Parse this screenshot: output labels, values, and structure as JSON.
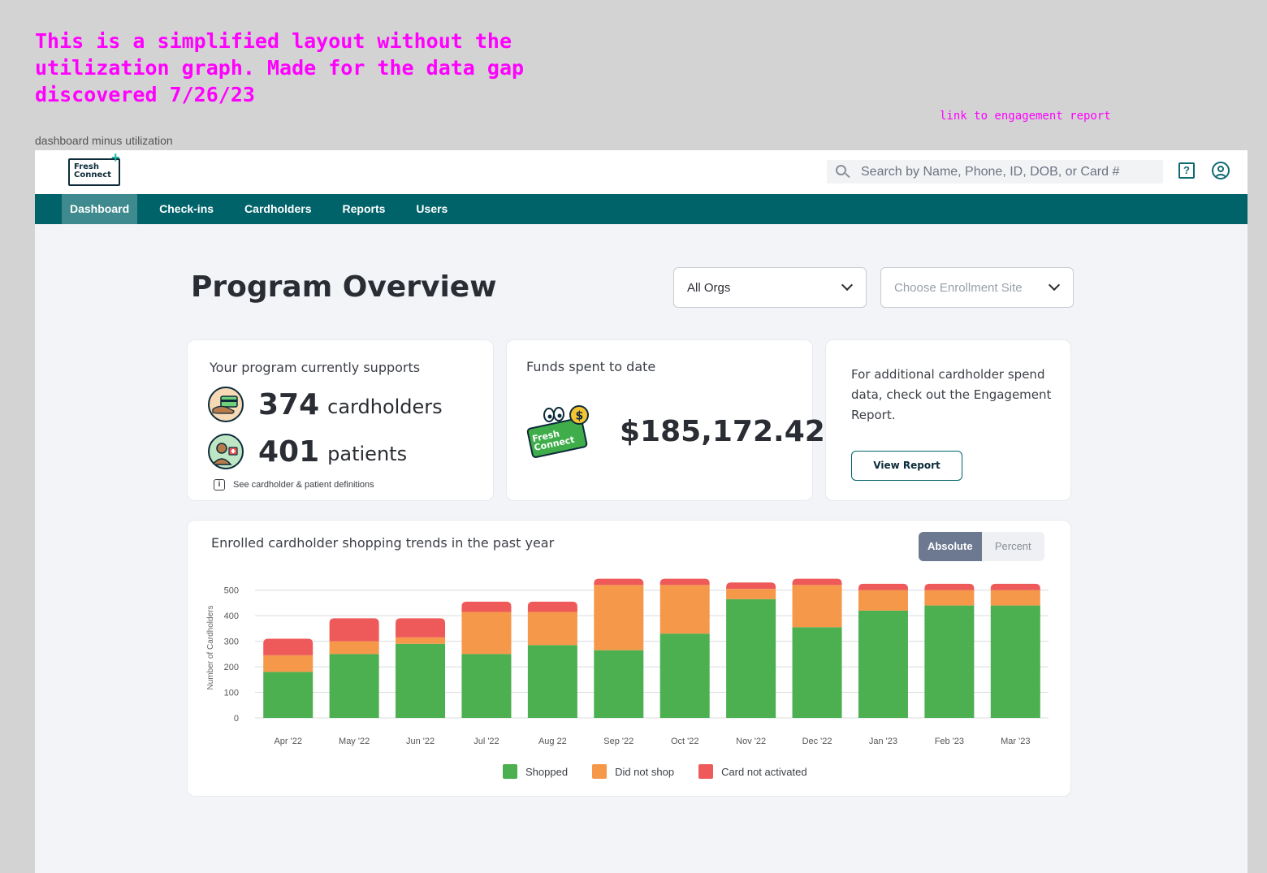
{
  "annotations": {
    "note": "This is a simplified layout without the utilization graph. Made for the data gap discovered 7/26/23",
    "link_note": "link to engagement report",
    "frame_label": "dashboard minus utilization"
  },
  "header": {
    "logo_line1": "Fresh",
    "logo_line2": "Connect",
    "search_placeholder": "Search by Name, Phone, ID, DOB, or Card #",
    "help_icon": "?"
  },
  "nav": {
    "items": [
      {
        "label": "Dashboard",
        "active": true
      },
      {
        "label": "Check-ins"
      },
      {
        "label": "Cardholders"
      },
      {
        "label": "Reports"
      },
      {
        "label": "Users"
      }
    ]
  },
  "page": {
    "title": "Program Overview",
    "org_select": "All Orgs",
    "site_select_placeholder": "Choose Enrollment Site"
  },
  "support_card": {
    "heading": "Your program currently supports",
    "cardholders_count": "374",
    "cardholders_label": "cardholders",
    "patients_count": "401",
    "patients_label": "patients",
    "definitions_link": "See cardholder & patient definitions"
  },
  "funds_card": {
    "heading": "Funds spent to date",
    "badge_text": "Fresh Connect",
    "value": "$185,172.42"
  },
  "report_card": {
    "text": "For additional cardholder spend data, check out the Engagement Report.",
    "button": "View Report"
  },
  "colors": {
    "shopped": "#4caf50",
    "did_not_shop": "#f5984a",
    "card_not_activated": "#ee5a5a",
    "brand_teal": "#00636a"
  },
  "chart_card": {
    "title": "Enrolled cardholder shopping trends in the past year",
    "toggle": [
      "Absolute",
      "Percent"
    ]
  },
  "chart_data": {
    "type": "bar",
    "stacked": true,
    "categories": [
      "Apr '22",
      "May '22",
      "Jun '22",
      "Jul '22",
      "Aug 22",
      "Sep '22",
      "Oct '22",
      "Nov '22",
      "Dec '22",
      "Jan '23",
      "Feb '23",
      "Mar '23"
    ],
    "series": [
      {
        "name": "Shopped",
        "values": [
          180,
          250,
          290,
          250,
          285,
          265,
          330,
          465,
          355,
          420,
          440,
          440
        ]
      },
      {
        "name": "Did not shop",
        "values": [
          65,
          50,
          25,
          165,
          130,
          255,
          190,
          40,
          165,
          80,
          60,
          60
        ]
      },
      {
        "name": "Card not activated",
        "values": [
          65,
          90,
          75,
          40,
          40,
          25,
          25,
          25,
          25,
          25,
          25,
          25
        ]
      }
    ],
    "ylabel": "Number of Cardholders",
    "yticks": [
      0,
      100,
      200,
      300,
      400,
      500
    ],
    "ylim": [
      0,
      550
    ],
    "grid": true,
    "legend_position": "bottom"
  }
}
